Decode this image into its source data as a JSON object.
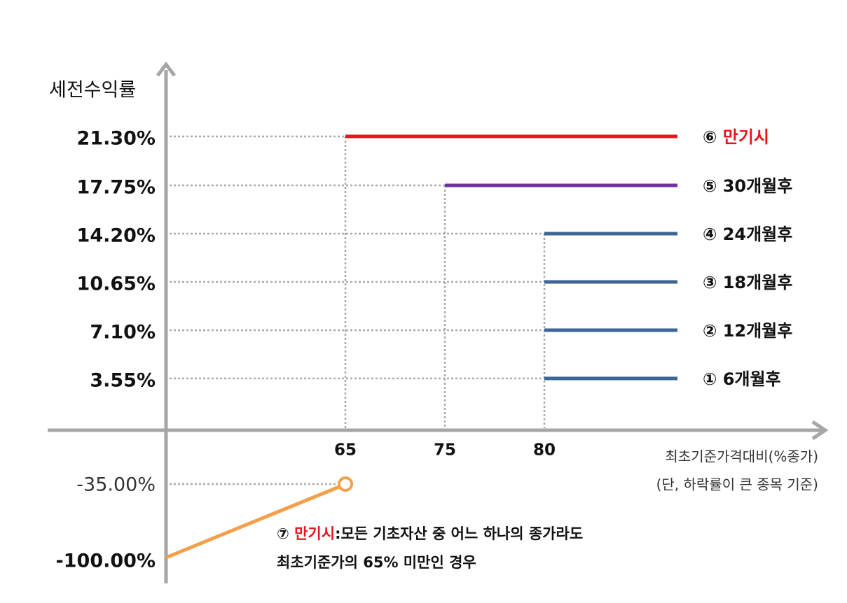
{
  "y_axis_label": "세전수익률",
  "x_axis_label": {
    "line_1": "최초기준가격대비(%종가)",
    "line_2": "(단, 하락률이 큰 종목 기준)"
  },
  "x_ticks": [
    "65",
    "75",
    "80"
  ],
  "levels": [
    {
      "rate": "21.30%",
      "marker": "⑥",
      "name": "만기시"
    },
    {
      "rate": "17.75%",
      "marker": "⑤",
      "name": "30개월후"
    },
    {
      "rate": "14.20%",
      "marker": "④",
      "name": "24개월후"
    },
    {
      "rate": "10.65%",
      "marker": "③",
      "name": "18개월후"
    },
    {
      "rate": "7.10%",
      "marker": "②",
      "name": "12개월후"
    },
    {
      "rate": "3.55%",
      "marker": "①",
      "name": "6개월후"
    }
  ],
  "loss": {
    "rate": "-35.00%",
    "floor": "-100.00%",
    "marker": "⑦",
    "name": "만기시",
    "note_1": ":모든 기초자산 중 어느 하나의 종가라도",
    "note_2": "최초기준가의 65% 미만인 경우"
  }
}
